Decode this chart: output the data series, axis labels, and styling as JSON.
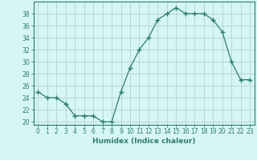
{
  "x": [
    0,
    1,
    2,
    3,
    4,
    5,
    6,
    7,
    8,
    9,
    10,
    11,
    12,
    13,
    14,
    15,
    16,
    17,
    18,
    19,
    20,
    21,
    22,
    23
  ],
  "y": [
    25,
    24,
    24,
    23,
    21,
    21,
    21,
    20,
    20,
    25,
    29,
    32,
    34,
    37,
    38,
    39,
    38,
    38,
    38,
    37,
    35,
    30,
    27,
    27
  ],
  "line_color": "#2e7d6e",
  "marker": "+",
  "marker_size": 4,
  "bg_color": "#d6f5f5",
  "grid_color": "#aed4d4",
  "xlabel": "Humidex (Indice chaleur)",
  "xlim": [
    -0.5,
    23.5
  ],
  "ylim": [
    19.5,
    40
  ],
  "yticks": [
    20,
    22,
    24,
    26,
    28,
    30,
    32,
    34,
    36,
    38
  ],
  "xticks": [
    0,
    1,
    2,
    3,
    4,
    5,
    6,
    7,
    8,
    9,
    10,
    11,
    12,
    13,
    14,
    15,
    16,
    17,
    18,
    19,
    20,
    21,
    22,
    23
  ],
  "xtick_labels": [
    "0",
    "1",
    "2",
    "3",
    "4",
    "5",
    "6",
    "7",
    "8",
    "9",
    "10",
    "11",
    "12",
    "13",
    "14",
    "15",
    "16",
    "17",
    "18",
    "19",
    "20",
    "21",
    "22",
    "23"
  ],
  "xlabel_color": "#2e7d6e",
  "tick_color": "#2e7d6e",
  "axis_color": "#2e7d6e",
  "tick_fontsize": 5.5,
  "xlabel_fontsize": 6.5
}
